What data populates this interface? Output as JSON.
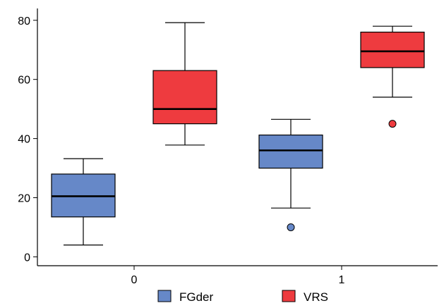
{
  "chart_data": {
    "type": "box",
    "categories": [
      "0",
      "1"
    ],
    "ylim": [
      -3,
      84
    ],
    "yticks": [
      0,
      20,
      40,
      60,
      80
    ],
    "legend_position": "bottom",
    "grid": false,
    "series": [
      {
        "name": "FGder",
        "color": "#6688c8",
        "boxes": [
          {
            "category": "0",
            "whisker_low": 4,
            "q1": 13.5,
            "median": 20.5,
            "q3": 28,
            "whisker_high": 33.2,
            "outliers": []
          },
          {
            "category": "1",
            "whisker_low": 16.5,
            "q1": 30,
            "median": 36,
            "q3": 41.2,
            "whisker_high": 46.5,
            "outliers": [
              10
            ]
          }
        ]
      },
      {
        "name": "VRS",
        "color": "#ee3b3f",
        "boxes": [
          {
            "category": "0",
            "whisker_low": 37.8,
            "q1": 45,
            "median": 50,
            "q3": 63,
            "whisker_high": 79.2,
            "outliers": []
          },
          {
            "category": "1",
            "whisker_low": 54,
            "q1": 64,
            "median": 69.5,
            "q3": 76,
            "whisker_high": 78,
            "outliers": [
              45
            ]
          }
        ]
      }
    ]
  }
}
